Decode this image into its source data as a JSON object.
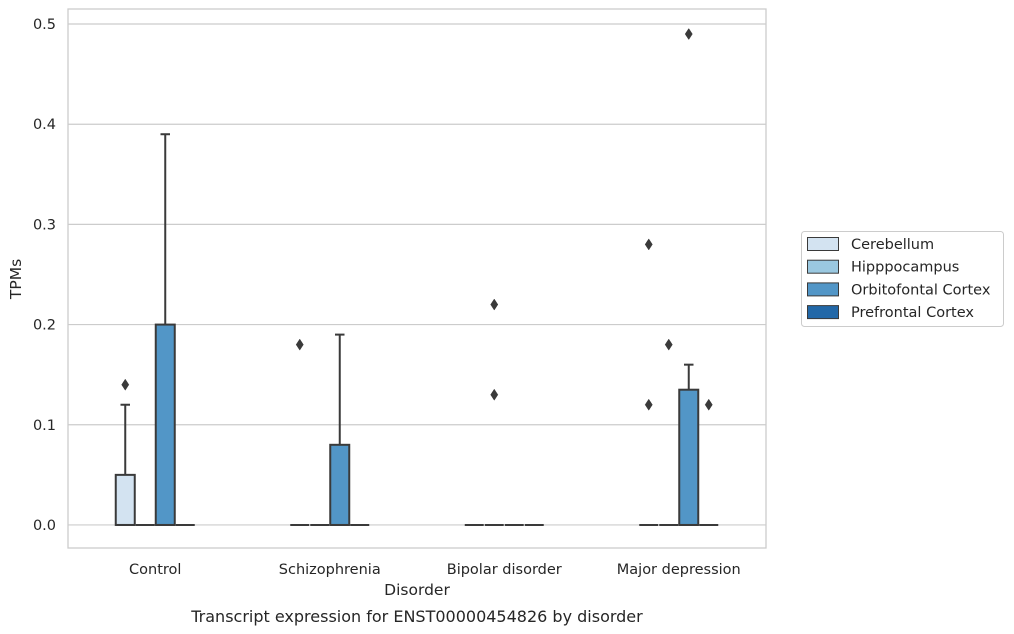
{
  "chart_data": {
    "type": "box",
    "caption": "Transcript expression for ENST00000454826 by disorder",
    "xlabel": "Disorder",
    "ylabel": "TPMs",
    "ylim": [
      -0.023,
      0.515
    ],
    "yticks": [
      0.0,
      0.1,
      0.2,
      0.3,
      0.4,
      0.5
    ],
    "ytick_labels": [
      "0.0",
      "0.1",
      "0.2",
      "0.3",
      "0.4",
      "0.5"
    ],
    "grid": "horizontal",
    "legend_position": "right",
    "categories": [
      "Control",
      "Schizophrenia",
      "Bipolar disorder",
      "Major depression"
    ],
    "series": [
      {
        "name": "Cerebellum",
        "color": "#d3e3f1",
        "boxes": [
          {
            "category": "Control",
            "whislo": 0.0,
            "q1": 0.0,
            "med": 0.0,
            "q3": 0.05,
            "whishi": 0.12,
            "fliers": [
              0.14
            ]
          },
          {
            "category": "Schizophrenia",
            "whislo": 0.0,
            "q1": 0.0,
            "med": 0.0,
            "q3": 0.0,
            "whishi": 0.0,
            "fliers": [
              0.18
            ]
          },
          {
            "category": "Bipolar disorder",
            "whislo": 0.0,
            "q1": 0.0,
            "med": 0.0,
            "q3": 0.0,
            "whishi": 0.0,
            "fliers": []
          },
          {
            "category": "Major depression",
            "whislo": 0.0,
            "q1": 0.0,
            "med": 0.0,
            "q3": 0.0,
            "whishi": 0.0,
            "fliers": [
              0.28,
              0.12
            ]
          }
        ]
      },
      {
        "name": "Hipppocampus",
        "color": "#9ac8e0",
        "boxes": [
          {
            "category": "Control",
            "whislo": 0.0,
            "q1": 0.0,
            "med": 0.0,
            "q3": 0.0,
            "whishi": 0.0,
            "fliers": []
          },
          {
            "category": "Schizophrenia",
            "whislo": 0.0,
            "q1": 0.0,
            "med": 0.0,
            "q3": 0.0,
            "whishi": 0.0,
            "fliers": []
          },
          {
            "category": "Bipolar disorder",
            "whislo": 0.0,
            "q1": 0.0,
            "med": 0.0,
            "q3": 0.0,
            "whishi": 0.0,
            "fliers": [
              0.22,
              0.13
            ]
          },
          {
            "category": "Major depression",
            "whislo": 0.0,
            "q1": 0.0,
            "med": 0.0,
            "q3": 0.0,
            "whishi": 0.0,
            "fliers": [
              0.18
            ]
          }
        ]
      },
      {
        "name": "Orbitofontal Cortex",
        "color": "#5296c7",
        "boxes": [
          {
            "category": "Control",
            "whislo": 0.0,
            "q1": 0.0,
            "med": 0.0,
            "q3": 0.2,
            "whishi": 0.39,
            "fliers": []
          },
          {
            "category": "Schizophrenia",
            "whislo": 0.0,
            "q1": 0.0,
            "med": 0.0,
            "q3": 0.08,
            "whishi": 0.19,
            "fliers": []
          },
          {
            "category": "Bipolar disorder",
            "whislo": 0.0,
            "q1": 0.0,
            "med": 0.0,
            "q3": 0.0,
            "whishi": 0.0,
            "fliers": []
          },
          {
            "category": "Major depression",
            "whislo": 0.0,
            "q1": 0.0,
            "med": 0.0,
            "q3": 0.135,
            "whishi": 0.16,
            "fliers": [
              0.49
            ]
          }
        ]
      },
      {
        "name": "Prefrontal Cortex",
        "color": "#2268a8",
        "boxes": [
          {
            "category": "Control",
            "whislo": 0.0,
            "q1": 0.0,
            "med": 0.0,
            "q3": 0.0,
            "whishi": 0.0,
            "fliers": []
          },
          {
            "category": "Schizophrenia",
            "whislo": 0.0,
            "q1": 0.0,
            "med": 0.0,
            "q3": 0.0,
            "whishi": 0.0,
            "fliers": []
          },
          {
            "category": "Bipolar disorder",
            "whislo": 0.0,
            "q1": 0.0,
            "med": 0.0,
            "q3": 0.0,
            "whishi": 0.0,
            "fliers": []
          },
          {
            "category": "Major depression",
            "whislo": 0.0,
            "q1": 0.0,
            "med": 0.0,
            "q3": 0.0,
            "whishi": 0.0,
            "fliers": [
              0.12
            ]
          }
        ]
      }
    ]
  },
  "style": {
    "grid_color": "#cccccc",
    "frame_color": "#cccccc",
    "box_edge_color": "#3a3a3a"
  }
}
